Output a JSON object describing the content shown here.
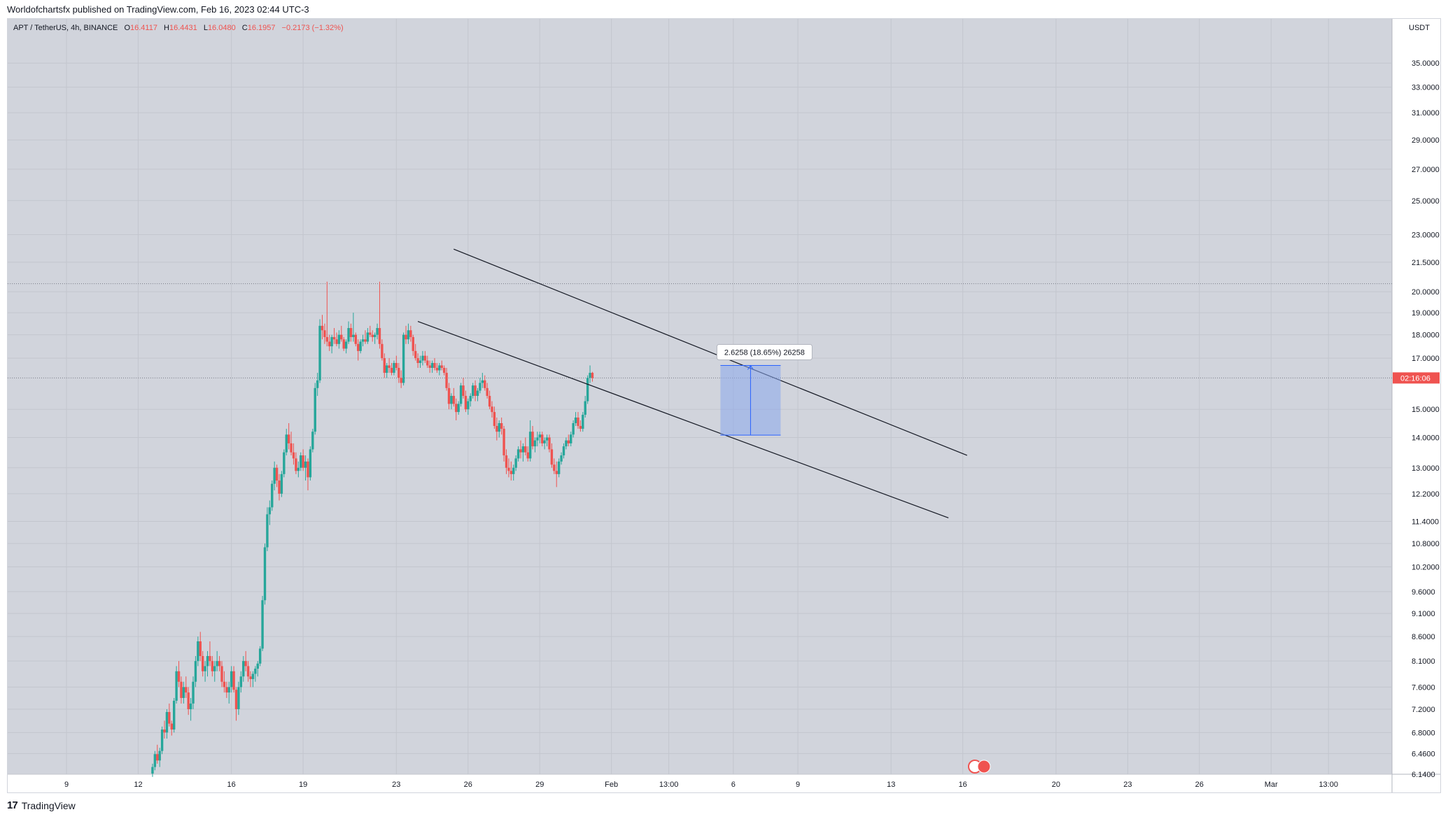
{
  "header": {
    "publish_text": "Worldofchartsfx published on TradingView.com, Feb 16, 2023 02:44 UTC-3"
  },
  "legend": {
    "symbol": "APT / TetherUS, 4h, BINANCE",
    "o_label": "O",
    "o_value": "16.4117",
    "h_label": "H",
    "h_value": "16.4431",
    "l_label": "L",
    "l_value": "16.0480",
    "c_label": "C",
    "c_value": "16.1957",
    "change": "−0.2173 (−1.32%)"
  },
  "price_axis": {
    "currency": "USDT",
    "countdown": "02:16:06"
  },
  "measure_tool": {
    "label": "2.6258 (18.65%) 26258",
    "from_price": 14.08,
    "to_price": 16.7,
    "from_day": 45.6,
    "to_day": 49.8
  },
  "footer": {
    "brand": "TradingView",
    "logo_glyph": "17"
  },
  "colors": {
    "up": "#26a69a",
    "down": "#ef5350",
    "chart_bg": "#d1d4dc",
    "measure_fill": "#8aa8ec",
    "measure_line": "#2962ff",
    "current_price": "#ef5350"
  },
  "chart_data": {
    "type": "candlestick",
    "scale": "log",
    "x_unit": "days since Jan 9, 2023 (4h candles)",
    "ylim": [
      6.14,
      39.0
    ],
    "xlim": [
      0,
      89.6
    ],
    "y_ticks": [
      "35.0000",
      "33.0000",
      "31.0000",
      "29.0000",
      "27.0000",
      "25.0000",
      "23.0000",
      "21.5000",
      "20.0000",
      "19.0000",
      "18.0000",
      "17.0000",
      "15.0000",
      "14.0000",
      "13.0000",
      "12.2000",
      "11.4000",
      "10.8000",
      "10.2000",
      "9.6000",
      "9.1000",
      "8.6000",
      "8.1000",
      "7.6000",
      "7.2000",
      "6.8000",
      "6.4600",
      "6.1400"
    ],
    "x_ticks": [
      {
        "day": 0,
        "label": "9"
      },
      {
        "day": 5,
        "label": "12"
      },
      {
        "day": 11.5,
        "label": "16"
      },
      {
        "day": 16.5,
        "label": "19"
      },
      {
        "day": 23,
        "label": "23"
      },
      {
        "day": 28,
        "label": "26"
      },
      {
        "day": 33,
        "label": "29"
      },
      {
        "day": 38,
        "label": "Feb"
      },
      {
        "day": 42,
        "label": "13:00"
      },
      {
        "day": 46.5,
        "label": "6"
      },
      {
        "day": 51,
        "label": "9"
      },
      {
        "day": 57.5,
        "label": "13"
      },
      {
        "day": 62.5,
        "label": "16"
      },
      {
        "day": 69,
        "label": "20"
      },
      {
        "day": 74,
        "label": "23"
      },
      {
        "day": 79,
        "label": "26"
      },
      {
        "day": 84,
        "label": "Mar"
      },
      {
        "day": 88,
        "label": "13:00"
      }
    ],
    "current_price": 16.1957,
    "ref_line_price": 20.4,
    "trend_lines": [
      {
        "x1": 27.0,
        "y1": 22.2,
        "x2": 62.8,
        "y2": 13.4
      },
      {
        "x1": 24.5,
        "y1": 18.6,
        "x2": 61.5,
        "y2": 11.5
      }
    ],
    "start_day": 6,
    "candle_step": 0.1667,
    "candles": [
      [
        6.15,
        6.3,
        6.1,
        6.25
      ],
      [
        6.25,
        6.5,
        6.2,
        6.45
      ],
      [
        6.45,
        6.6,
        6.3,
        6.35
      ],
      [
        6.35,
        6.55,
        6.25,
        6.5
      ],
      [
        6.5,
        6.9,
        6.45,
        6.85
      ],
      [
        6.85,
        7.0,
        6.7,
        6.8
      ],
      [
        6.8,
        7.2,
        6.7,
        7.15
      ],
      [
        7.15,
        7.3,
        6.9,
        6.95
      ],
      [
        6.95,
        7.0,
        6.75,
        6.85
      ],
      [
        6.85,
        7.4,
        6.8,
        7.35
      ],
      [
        7.35,
        8.0,
        7.3,
        7.9
      ],
      [
        7.9,
        8.1,
        7.6,
        7.7
      ],
      [
        7.7,
        7.8,
        7.3,
        7.4
      ],
      [
        7.4,
        7.7,
        7.3,
        7.6
      ],
      [
        7.6,
        7.8,
        7.4,
        7.5
      ],
      [
        7.5,
        7.6,
        7.1,
        7.2
      ],
      [
        7.2,
        7.4,
        7.0,
        7.3
      ],
      [
        7.3,
        7.8,
        7.2,
        7.7
      ],
      [
        7.7,
        8.2,
        7.6,
        8.1
      ],
      [
        8.1,
        8.6,
        8.0,
        8.5
      ],
      [
        8.5,
        8.7,
        8.1,
        8.2
      ],
      [
        8.2,
        8.3,
        7.8,
        7.9
      ],
      [
        7.9,
        8.1,
        7.7,
        8.0
      ],
      [
        8.0,
        8.3,
        7.8,
        8.2
      ],
      [
        8.2,
        8.5,
        8.0,
        8.1
      ],
      [
        8.1,
        8.2,
        7.8,
        7.9
      ],
      [
        7.9,
        8.1,
        7.7,
        8.0
      ],
      [
        8.0,
        8.3,
        7.9,
        8.1
      ],
      [
        8.1,
        8.2,
        7.9,
        8.0
      ],
      [
        8.0,
        8.1,
        7.6,
        7.7
      ],
      [
        7.7,
        7.9,
        7.5,
        7.6
      ],
      [
        7.6,
        7.7,
        7.4,
        7.5
      ],
      [
        7.5,
        7.7,
        7.3,
        7.6
      ],
      [
        7.6,
        8.0,
        7.5,
        7.9
      ],
      [
        7.9,
        8.0,
        7.5,
        7.55
      ],
      [
        7.55,
        7.6,
        7.0,
        7.2
      ],
      [
        7.2,
        7.7,
        7.1,
        7.6
      ],
      [
        7.6,
        7.9,
        7.5,
        7.8
      ],
      [
        7.8,
        8.2,
        7.7,
        8.1
      ],
      [
        8.1,
        8.3,
        7.9,
        8.0
      ],
      [
        8.0,
        8.1,
        7.7,
        7.8
      ],
      [
        7.8,
        7.9,
        7.6,
        7.75
      ],
      [
        7.75,
        7.9,
        7.6,
        7.85
      ],
      [
        7.85,
        8.0,
        7.7,
        7.95
      ],
      [
        7.95,
        8.1,
        7.8,
        8.05
      ],
      [
        8.05,
        8.4,
        8.0,
        8.35
      ],
      [
        8.35,
        9.5,
        8.3,
        9.4
      ],
      [
        9.4,
        10.8,
        9.3,
        10.7
      ],
      [
        10.7,
        11.8,
        10.6,
        11.6
      ],
      [
        11.6,
        12.0,
        11.3,
        11.8
      ],
      [
        11.8,
        12.6,
        11.7,
        12.5
      ],
      [
        12.5,
        13.2,
        12.3,
        13.0
      ],
      [
        13.0,
        13.1,
        12.4,
        12.6
      ],
      [
        12.6,
        12.8,
        12.0,
        12.2
      ],
      [
        12.2,
        12.9,
        12.1,
        12.8
      ],
      [
        12.8,
        13.6,
        12.7,
        13.5
      ],
      [
        13.5,
        14.3,
        13.4,
        14.1
      ],
      [
        14.1,
        14.5,
        13.6,
        13.8
      ],
      [
        13.8,
        14.2,
        13.4,
        13.5
      ],
      [
        13.5,
        13.8,
        13.1,
        13.3
      ],
      [
        13.3,
        13.5,
        12.8,
        12.9
      ],
      [
        12.9,
        13.2,
        12.7,
        13.0
      ],
      [
        13.0,
        13.5,
        12.9,
        13.4
      ],
      [
        13.4,
        13.6,
        12.9,
        13.0
      ],
      [
        13.0,
        13.4,
        12.6,
        13.2
      ],
      [
        13.2,
        13.3,
        12.3,
        12.7
      ],
      [
        12.7,
        13.7,
        12.6,
        13.6
      ],
      [
        13.6,
        14.3,
        13.5,
        14.2
      ],
      [
        14.2,
        16.0,
        14.1,
        15.8
      ],
      [
        15.8,
        16.4,
        15.5,
        16.1
      ],
      [
        16.1,
        18.7,
        16.0,
        18.4
      ],
      [
        18.4,
        18.9,
        17.8,
        18.2
      ],
      [
        18.2,
        18.5,
        17.6,
        17.9
      ],
      [
        17.9,
        20.5,
        17.5,
        17.7
      ],
      [
        17.7,
        18.0,
        17.3,
        17.5
      ],
      [
        17.5,
        18.0,
        17.2,
        17.9
      ],
      [
        17.9,
        18.3,
        17.6,
        17.8
      ],
      [
        17.8,
        18.1,
        17.5,
        17.6
      ],
      [
        17.6,
        18.2,
        17.4,
        18.0
      ],
      [
        18.0,
        18.4,
        17.7,
        17.8
      ],
      [
        17.8,
        17.9,
        17.3,
        17.4
      ],
      [
        17.4,
        17.8,
        17.2,
        17.7
      ],
      [
        17.7,
        18.6,
        17.6,
        18.3
      ],
      [
        18.3,
        18.5,
        17.7,
        17.9
      ],
      [
        17.9,
        19.0,
        17.7,
        18.0
      ],
      [
        18.0,
        18.1,
        17.5,
        17.6
      ],
      [
        17.6,
        17.8,
        16.9,
        17.3
      ],
      [
        17.3,
        17.8,
        17.2,
        17.7
      ],
      [
        17.7,
        18.0,
        17.5,
        17.8
      ],
      [
        17.8,
        18.2,
        17.6,
        17.7
      ],
      [
        17.7,
        18.3,
        17.6,
        18.1
      ],
      [
        18.1,
        18.4,
        17.9,
        18.0
      ],
      [
        18.0,
        18.2,
        17.7,
        17.9
      ],
      [
        17.9,
        18.1,
        17.6,
        18.0
      ],
      [
        18.0,
        18.5,
        17.8,
        18.3
      ],
      [
        18.3,
        20.5,
        17.4,
        17.6
      ],
      [
        17.6,
        17.8,
        16.9,
        17.0
      ],
      [
        17.0,
        17.2,
        16.2,
        16.4
      ],
      [
        16.4,
        16.8,
        16.2,
        16.7
      ],
      [
        16.7,
        17.0,
        16.4,
        16.6
      ],
      [
        16.6,
        16.8,
        16.3,
        16.4
      ],
      [
        16.4,
        16.9,
        16.3,
        16.8
      ],
      [
        16.8,
        17.1,
        16.5,
        16.6
      ],
      [
        16.6,
        16.8,
        16.0,
        16.2
      ],
      [
        16.2,
        16.5,
        15.8,
        16.0
      ],
      [
        16.0,
        18.1,
        15.9,
        18.0
      ],
      [
        18.0,
        18.4,
        17.6,
        17.8
      ],
      [
        17.8,
        18.5,
        17.6,
        18.2
      ],
      [
        18.2,
        18.4,
        17.7,
        17.9
      ],
      [
        17.9,
        18.0,
        17.1,
        17.3
      ],
      [
        17.3,
        17.6,
        16.9,
        17.0
      ],
      [
        17.0,
        17.2,
        16.6,
        16.8
      ],
      [
        16.8,
        17.1,
        16.6,
        16.9
      ],
      [
        16.9,
        17.3,
        16.7,
        17.1
      ],
      [
        17.1,
        17.3,
        16.8,
        16.9
      ],
      [
        16.9,
        17.1,
        16.6,
        16.7
      ],
      [
        16.7,
        16.9,
        16.4,
        16.6
      ],
      [
        16.6,
        16.9,
        16.4,
        16.8
      ],
      [
        16.8,
        17.0,
        16.5,
        16.6
      ],
      [
        16.6,
        16.8,
        16.4,
        16.5
      ],
      [
        16.5,
        16.8,
        16.3,
        16.7
      ],
      [
        16.7,
        16.9,
        16.5,
        16.6
      ],
      [
        16.6,
        16.7,
        16.3,
        16.4
      ],
      [
        16.4,
        16.6,
        15.7,
        15.8
      ],
      [
        15.8,
        16.0,
        15.0,
        15.2
      ],
      [
        15.2,
        15.6,
        15.0,
        15.5
      ],
      [
        15.5,
        15.8,
        15.1,
        15.2
      ],
      [
        15.2,
        15.4,
        14.6,
        14.9
      ],
      [
        14.9,
        15.3,
        14.8,
        15.2
      ],
      [
        15.2,
        16.0,
        15.1,
        15.9
      ],
      [
        15.9,
        16.2,
        15.4,
        15.5
      ],
      [
        15.5,
        15.7,
        14.9,
        15.0
      ],
      [
        15.0,
        15.4,
        14.8,
        15.3
      ],
      [
        15.3,
        15.6,
        15.1,
        15.5
      ],
      [
        15.5,
        16.0,
        15.4,
        15.9
      ],
      [
        15.9,
        16.1,
        15.3,
        15.5
      ],
      [
        15.5,
        15.8,
        15.3,
        15.7
      ],
      [
        15.7,
        16.2,
        15.6,
        16.0
      ],
      [
        16.0,
        16.4,
        15.8,
        16.1
      ],
      [
        16.1,
        16.3,
        15.7,
        15.8
      ],
      [
        15.8,
        16.0,
        15.4,
        15.5
      ],
      [
        15.5,
        15.7,
        15.0,
        15.1
      ],
      [
        15.1,
        15.3,
        14.7,
        14.9
      ],
      [
        14.9,
        15.1,
        14.3,
        14.4
      ],
      [
        14.4,
        14.7,
        13.9,
        14.2
      ],
      [
        14.2,
        14.6,
        14.0,
        14.5
      ],
      [
        14.5,
        14.7,
        14.1,
        14.3
      ],
      [
        14.3,
        14.4,
        13.2,
        13.4
      ],
      [
        13.4,
        13.6,
        12.8,
        13.0
      ],
      [
        13.0,
        13.3,
        12.7,
        12.9
      ],
      [
        12.9,
        13.2,
        12.6,
        12.8
      ],
      [
        12.8,
        13.1,
        12.6,
        13.0
      ],
      [
        13.0,
        13.4,
        12.9,
        13.3
      ],
      [
        13.3,
        13.7,
        13.2,
        13.6
      ],
      [
        13.6,
        13.9,
        13.3,
        13.5
      ],
      [
        13.5,
        13.8,
        13.2,
        13.7
      ],
      [
        13.7,
        14.0,
        13.4,
        13.5
      ],
      [
        13.5,
        13.7,
        13.2,
        13.3
      ],
      [
        13.3,
        14.6,
        13.2,
        14.2
      ],
      [
        14.2,
        14.4,
        13.6,
        13.7
      ],
      [
        13.7,
        14.0,
        13.5,
        13.9
      ],
      [
        13.9,
        14.2,
        13.7,
        14.0
      ],
      [
        14.0,
        14.2,
        13.8,
        14.1
      ],
      [
        14.1,
        14.2,
        13.7,
        13.8
      ],
      [
        13.8,
        14.0,
        13.6,
        13.9
      ],
      [
        13.9,
        14.1,
        13.7,
        14.0
      ],
      [
        14.0,
        14.1,
        13.5,
        13.6
      ],
      [
        13.6,
        13.8,
        13.0,
        13.1
      ],
      [
        13.1,
        13.3,
        12.8,
        12.9
      ],
      [
        12.9,
        13.2,
        12.4,
        12.8
      ],
      [
        12.8,
        13.3,
        12.7,
        13.2
      ],
      [
        13.2,
        13.5,
        13.1,
        13.4
      ],
      [
        13.4,
        13.8,
        13.3,
        13.7
      ],
      [
        13.7,
        14.0,
        13.6,
        13.9
      ],
      [
        13.9,
        14.1,
        13.7,
        13.8
      ],
      [
        13.8,
        14.2,
        13.7,
        14.1
      ],
      [
        14.1,
        14.6,
        14.0,
        14.5
      ],
      [
        14.5,
        14.9,
        14.4,
        14.7
      ],
      [
        14.7,
        14.9,
        14.3,
        14.4
      ],
      [
        14.4,
        14.6,
        14.2,
        14.3
      ],
      [
        14.3,
        14.9,
        14.2,
        14.8
      ],
      [
        14.8,
        15.5,
        14.7,
        15.3
      ],
      [
        15.3,
        16.3,
        15.2,
        16.2
      ],
      [
        16.2,
        16.7,
        16.0,
        16.4
      ],
      [
        16.4,
        16.44,
        16.05,
        16.1957
      ]
    ]
  }
}
